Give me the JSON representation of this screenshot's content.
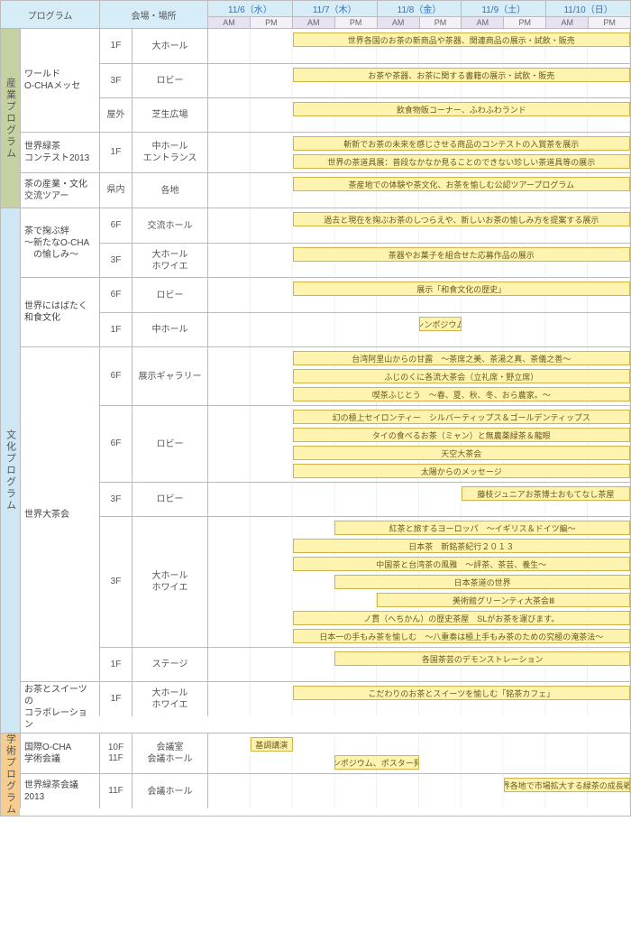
{
  "colors": {
    "headerBg": "#d6edf7",
    "amBg": "#e7e2f1",
    "pmBg": "#f3f0f8",
    "barFill": "#fff3b0",
    "barBorder": "#d4b24a",
    "industryBg": "#c5d1a1",
    "cultureBg": "#cde7f5",
    "academicBg": "#f7cc8f",
    "border": "#bbbbbb"
  },
  "header": {
    "programLabel": "プログラム",
    "venueLabel": "会場・場所",
    "dates": [
      "11/6（水）",
      "11/7（木）",
      "11/8（金）",
      "11/9（土）",
      "11/10（日）"
    ],
    "am": "AM",
    "pm": "PM"
  },
  "timeline": {
    "totalSlots": 10
  },
  "sections": [
    {
      "id": "industry",
      "label": "産業プログラム",
      "programs": [
        {
          "name": "ワールド\nO-CHAメッセ",
          "venues": [
            {
              "floor": "1F",
              "room": "大ホール",
              "bars": [
                {
                  "start": 2,
                  "end": 10,
                  "label": "世界各国のお茶の新商品や茶器、関連商品の展示・試飲・販売"
                }
              ]
            },
            {
              "floor": "3F",
              "room": "ロビー",
              "bars": [
                {
                  "start": 2,
                  "end": 10,
                  "label": "お茶や茶器、お茶に関する書籍の展示・試飲・販売"
                }
              ]
            },
            {
              "floor": "屋外",
              "room": "芝生広場",
              "bars": [
                {
                  "start": 2,
                  "end": 10,
                  "label": "飲食物販コーナー、ふわふわランド"
                }
              ]
            }
          ]
        },
        {
          "name": "世界緑茶\nコンテスト2013",
          "venues": [
            {
              "floor": "1F",
              "room": "中ホール\nエントランス",
              "bars": [
                {
                  "start": 2,
                  "end": 10,
                  "label": "斬新でお茶の未来を感じさせる商品のコンテストの入賞茶を展示"
                },
                {
                  "start": 2,
                  "end": 10,
                  "label": "世界の茶道具展：普段なかなか見ることのできない珍しい茶道具等の展示"
                }
              ]
            }
          ]
        },
        {
          "name": "茶の産業・文化\n交流ツアー",
          "venues": [
            {
              "floor": "県内",
              "room": "各地",
              "bars": [
                {
                  "start": 2,
                  "end": 10,
                  "label": "茶産地での体験や茶文化、お茶を愉しむ公認ツアープログラム"
                }
              ]
            }
          ]
        }
      ]
    },
    {
      "id": "culture",
      "label": "文化プログラム",
      "programs": [
        {
          "name": "茶で掬ぶ絆\n～新たなO-CHA\n　の愉しみ～",
          "venues": [
            {
              "floor": "6F",
              "room": "交流ホール",
              "bars": [
                {
                  "start": 2,
                  "end": 10,
                  "label": "過去と現在を掬ぶお茶のしつらえや、新しいお茶の愉しみ方を提案する展示"
                }
              ]
            },
            {
              "floor": "3F",
              "room": "大ホール\nホワイエ",
              "bars": [
                {
                  "start": 2,
                  "end": 10,
                  "label": "茶器やお菓子を組合せた応募作品の展示"
                }
              ]
            }
          ]
        },
        {
          "name": "世界にはばたく\n和食文化",
          "venues": [
            {
              "floor": "6F",
              "room": "ロビー",
              "bars": [
                {
                  "start": 2,
                  "end": 10,
                  "label": "展示「和食文化の歴史」"
                }
              ]
            },
            {
              "floor": "1F",
              "room": "中ホール",
              "bars": [
                {
                  "start": 5,
                  "end": 6,
                  "label": "シンポジウム"
                }
              ]
            }
          ]
        },
        {
          "name": "世界大茶会",
          "venues": [
            {
              "floor": "6F",
              "room": "展示ギャラリー",
              "bars": [
                {
                  "start": 2,
                  "end": 10,
                  "label": "台湾阿里山からの甘露　～茶席之美、茶湯之真、茶儀之善～"
                },
                {
                  "start": 2,
                  "end": 10,
                  "label": "ふじのくに各流大茶会（立礼席・野立席）"
                },
                {
                  "start": 2,
                  "end": 10,
                  "label": "喫茶ふじとう　～春、夏、秋、冬、おら農家。～"
                }
              ]
            },
            {
              "floor": "6F",
              "room": "ロビー",
              "bars": [
                {
                  "start": 2,
                  "end": 10,
                  "label": "幻の極上セイロンティー　シルバーティップス＆ゴールデンティップス"
                },
                {
                  "start": 2,
                  "end": 10,
                  "label": "タイの食べるお茶（ミャン）と無農薬緑茶＆龍眼"
                },
                {
                  "start": 2,
                  "end": 10,
                  "label": "天空大茶会"
                },
                {
                  "start": 2,
                  "end": 10,
                  "label": "太陽からのメッセージ"
                }
              ]
            },
            {
              "floor": "3F",
              "room": "ロビー",
              "bars": [
                {
                  "start": 6,
                  "end": 10,
                  "label": "藤枝ジュニアお茶博士おもてなし茶屋"
                }
              ]
            },
            {
              "floor": "3F",
              "room": "大ホール\nホワイエ",
              "bars": [
                {
                  "start": 3,
                  "end": 10,
                  "label": "紅茶と旅するヨーロッパ　～イギリス＆ドイツ編～"
                },
                {
                  "start": 2,
                  "end": 10,
                  "label": "日本茶　新銘茶紀行２０１３"
                },
                {
                  "start": 2,
                  "end": 10,
                  "label": "中国茶と台湾茶の風雅　～評茶、茶芸、養生～"
                },
                {
                  "start": 3,
                  "end": 10,
                  "label": "日本茶道の世界"
                },
                {
                  "start": 4,
                  "end": 10,
                  "label": "美術館グリーンティ大茶会Ⅲ"
                },
                {
                  "start": 2,
                  "end": 10,
                  "label": "ノ貫（へちかん）の歴史茶屋　SLがお茶を運びます。"
                },
                {
                  "start": 2,
                  "end": 10,
                  "label": "日本一の手もみ茶を愉しむ　～八重奏は極上手もみ茶のための究極の淹茶法～"
                }
              ]
            },
            {
              "floor": "1F",
              "room": "ステージ",
              "bars": [
                {
                  "start": 3,
                  "end": 10,
                  "label": "各国茶芸のデモンストレーション"
                }
              ]
            }
          ]
        },
        {
          "name": "お茶とスイーツの\nコラボレーション",
          "venues": [
            {
              "floor": "1F",
              "room": "大ホール\nホワイエ",
              "bars": [
                {
                  "start": 2,
                  "end": 10,
                  "label": "こだわりのお茶とスイーツを愉しむ「銘茶カフェ」"
                }
              ]
            }
          ]
        }
      ]
    },
    {
      "id": "academic",
      "label": "学術プログラム",
      "programs": [
        {
          "name": "国際O-CHA\n学術会議",
          "venues": [
            {
              "floor": "10F\n11F",
              "room": "会議室\n会議ホール",
              "bars": [
                {
                  "start": 1,
                  "end": 2,
                  "label": "基調講演"
                },
                {
                  "start": 3,
                  "end": 5,
                  "label": "シンポジウム、ポスター発表"
                }
              ]
            }
          ]
        },
        {
          "name": "世界緑茶会議\n2013",
          "venues": [
            {
              "floor": "11F",
              "room": "会議ホール",
              "bars": [
                {
                  "start": 7,
                  "end": 10,
                  "label": "世界各地で市場拡大する緑茶の成長戦略"
                }
              ]
            }
          ]
        }
      ]
    }
  ]
}
